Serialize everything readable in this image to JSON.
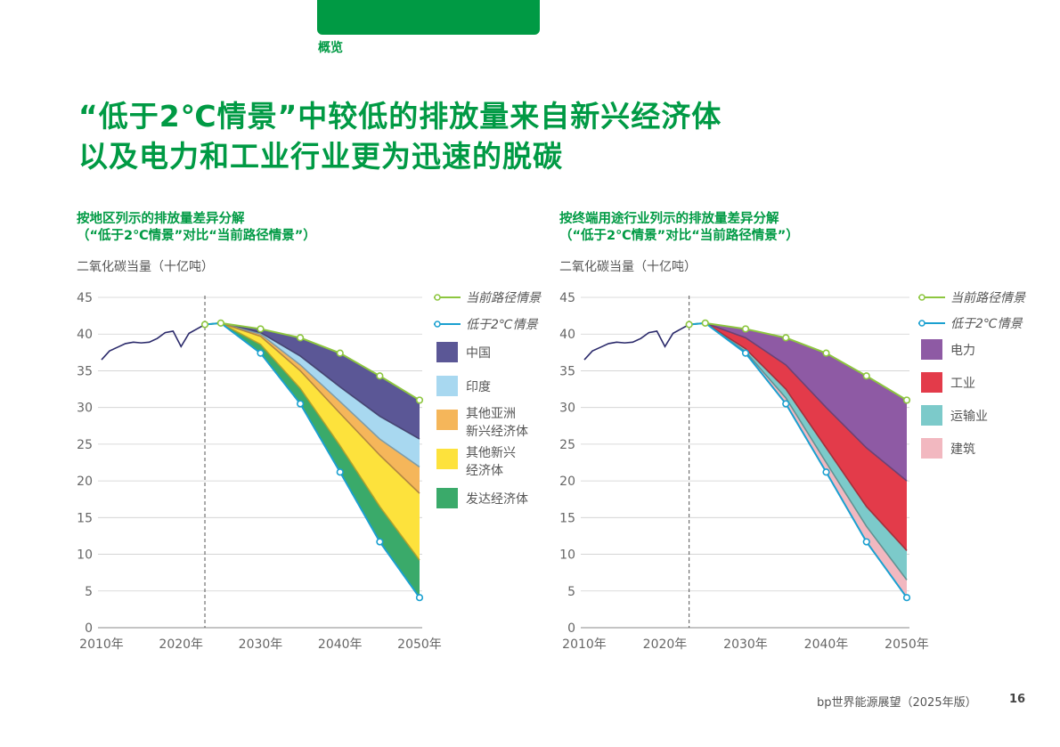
{
  "header": {
    "section": "概览"
  },
  "headline": {
    "line1": "“低于2℃情景”中较低的排放量来自新兴经济体",
    "line2": "以及电力和工业行业更为迅速的脱碳"
  },
  "footer": {
    "publication": "bp世界能源展望（2025年版）",
    "page": "16"
  },
  "colors": {
    "brand_green": "#009a44",
    "current_path": "#8dc63f",
    "below2": "#1aa0d0",
    "history": "#2b2a6b",
    "china": "#5b5796",
    "india": "#a8d8f0",
    "other_asia": "#f5b65a",
    "other_emerging": "#fde23c",
    "developed": "#3aaa6a",
    "power": "#8e5aa4",
    "industry": "#e33b4a",
    "transport": "#7ccaca",
    "buildings": "#f2b8c0"
  },
  "chart_data": [
    {
      "type": "area",
      "title": [
        "按地区列示的排放量差异分解",
        "（“低于2℃情景”对比“当前路径情景”）"
      ],
      "ylabel": "二氧化碳当量（十亿吨）",
      "ylim": [
        0,
        45
      ],
      "yticks": [
        "0",
        "5",
        "10",
        "15",
        "20",
        "25",
        "30",
        "35",
        "40",
        "45"
      ],
      "xlim": [
        2010,
        2050
      ],
      "xticks": [
        "2010年",
        "2020年",
        "2030年",
        "2040年",
        "2050年"
      ],
      "xtick_values": [
        2010,
        2020,
        2030,
        2040,
        2050
      ],
      "divider_year": 2023,
      "history": {
        "x": [
          2010,
          2011,
          2012,
          2013,
          2014,
          2015,
          2016,
          2017,
          2018,
          2019,
          2020,
          2021,
          2022,
          2023
        ],
        "y": [
          36.5,
          37.7,
          38.2,
          38.7,
          38.9,
          38.8,
          38.9,
          39.4,
          40.2,
          40.4,
          38.3,
          40.1,
          40.7,
          41.3
        ]
      },
      "legend": {
        "current_path": "当前路径情景",
        "below2": "低于2℃情景",
        "segments": [
          {
            "key": "china",
            "lines": [
              "中国"
            ]
          },
          {
            "key": "india",
            "lines": [
              "印度"
            ]
          },
          {
            "key": "other_asia",
            "lines": [
              "其他亚洲",
              "新兴经济体"
            ]
          },
          {
            "key": "other_emerging",
            "lines": [
              "其他新兴",
              "经济体"
            ]
          },
          {
            "key": "developed",
            "lines": [
              "发达经济体"
            ]
          }
        ]
      },
      "x": [
        2023,
        2025,
        2030,
        2035,
        2040,
        2045,
        2050
      ],
      "current_path": [
        41.3,
        41.5,
        40.7,
        39.5,
        37.4,
        34.3,
        31.0
      ],
      "below2": [
        41.3,
        41.5,
        37.4,
        30.5,
        21.2,
        11.7,
        4.1
      ],
      "marker_x": [
        2023,
        2025,
        2030,
        2035,
        2040,
        2045,
        2050
      ],
      "boundaries": {
        "china": [
          41.3,
          41.5,
          40.2,
          37.0,
          32.8,
          28.8,
          25.7
        ],
        "india": [
          41.3,
          41.5,
          40.0,
          35.8,
          30.8,
          25.7,
          21.9
        ],
        "other_asia": [
          41.3,
          41.5,
          39.7,
          35.0,
          29.2,
          23.5,
          18.3
        ],
        "other_emerging": [
          41.3,
          41.5,
          38.6,
          32.6,
          24.8,
          16.5,
          9.2
        ]
      }
    },
    {
      "type": "area",
      "title": [
        "按终端用途行业列示的排放量差异分解",
        "（“低于2℃情景”对比“当前路径情景”）"
      ],
      "ylabel": "二氧化碳当量（十亿吨）",
      "ylim": [
        0,
        45
      ],
      "yticks": [
        "0",
        "5",
        "10",
        "15",
        "20",
        "25",
        "30",
        "35",
        "40",
        "45"
      ],
      "xlim": [
        2010,
        2050
      ],
      "xticks": [
        "2010年",
        "2020年",
        "2030年",
        "2040年",
        "2050年"
      ],
      "xtick_values": [
        2010,
        2020,
        2030,
        2040,
        2050
      ],
      "divider_year": 2023,
      "history": {
        "x": [
          2010,
          2011,
          2012,
          2013,
          2014,
          2015,
          2016,
          2017,
          2018,
          2019,
          2020,
          2021,
          2022,
          2023
        ],
        "y": [
          36.5,
          37.7,
          38.2,
          38.7,
          38.9,
          38.8,
          38.9,
          39.4,
          40.2,
          40.4,
          38.3,
          40.1,
          40.7,
          41.3
        ]
      },
      "legend": {
        "current_path": "当前路径情景",
        "below2": "低于2℃情景",
        "segments": [
          {
            "key": "power",
            "lines": [
              "电力"
            ]
          },
          {
            "key": "industry",
            "lines": [
              "工业"
            ]
          },
          {
            "key": "transport",
            "lines": [
              "运输业"
            ]
          },
          {
            "key": "buildings",
            "lines": [
              "建筑"
            ]
          }
        ]
      },
      "x": [
        2023,
        2025,
        2030,
        2035,
        2040,
        2045,
        2050
      ],
      "current_path": [
        41.3,
        41.5,
        40.7,
        39.5,
        37.4,
        34.3,
        31.0
      ],
      "below2": [
        41.3,
        41.5,
        37.4,
        30.5,
        21.2,
        11.7,
        4.1
      ],
      "marker_x": [
        2023,
        2025,
        2030,
        2035,
        2040,
        2045,
        2050
      ],
      "boundaries": {
        "power": [
          41.3,
          41.5,
          39.5,
          35.8,
          30.0,
          24.5,
          20.0
        ],
        "industry": [
          41.3,
          41.5,
          38.0,
          32.5,
          24.5,
          16.5,
          10.5
        ],
        "transport": [
          41.3,
          41.5,
          37.6,
          31.3,
          22.5,
          13.8,
          6.5
        ]
      }
    }
  ]
}
